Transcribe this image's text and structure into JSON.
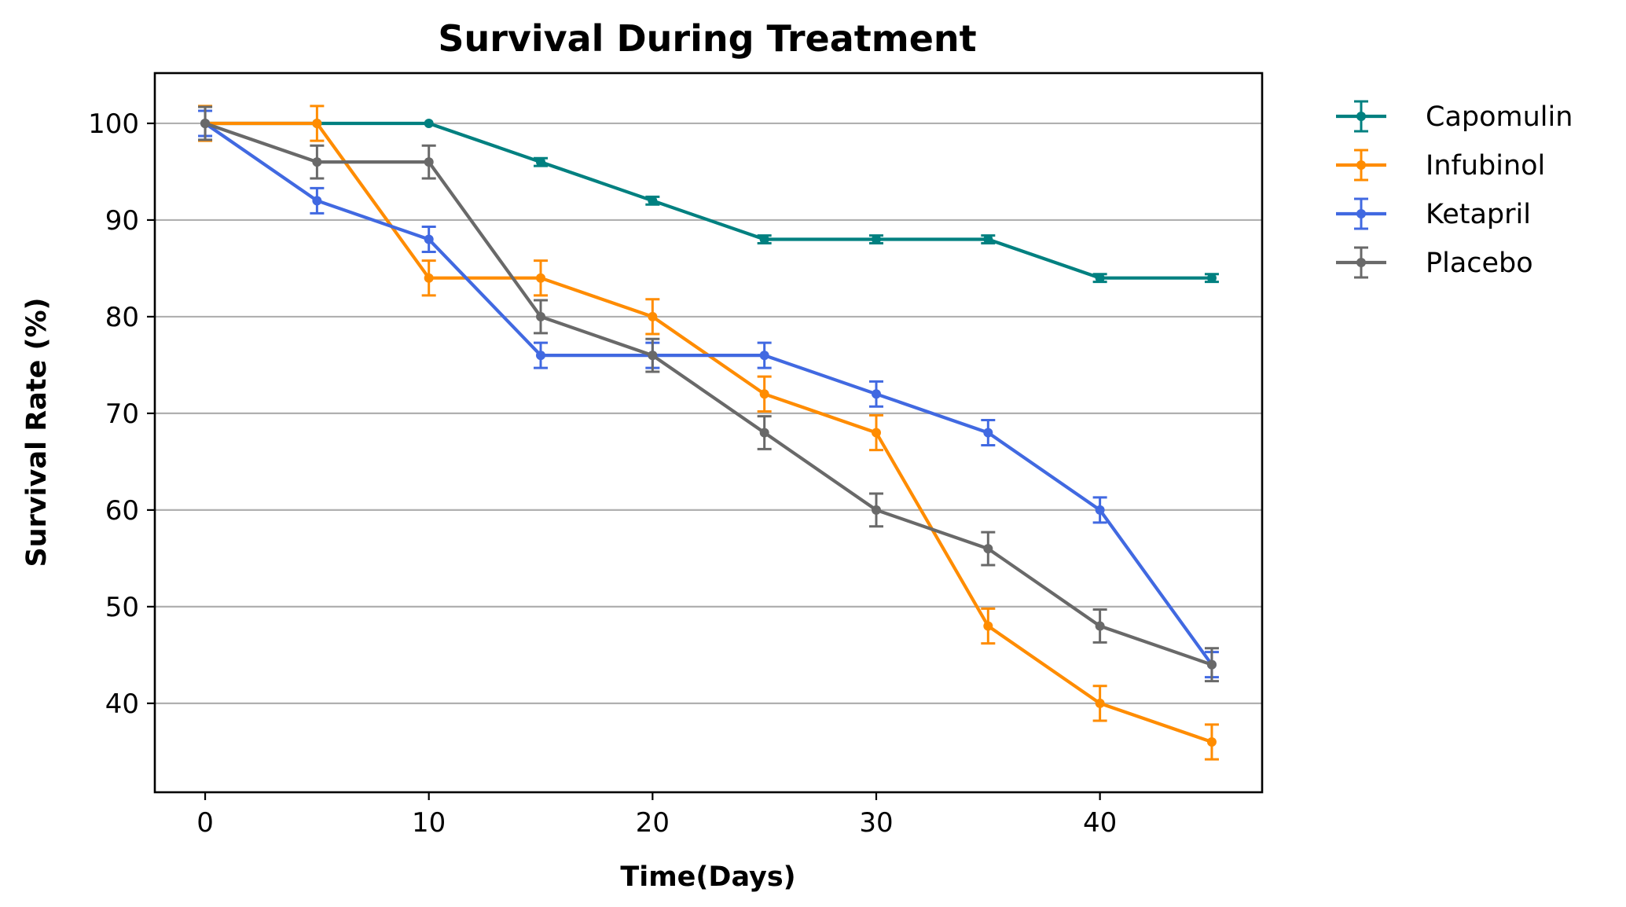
{
  "chart_data": {
    "type": "line",
    "title": "Survival During Treatment",
    "xlabel": "Time(Days)",
    "ylabel": "Survival Rate (%)",
    "x": [
      0,
      5,
      10,
      15,
      20,
      25,
      30,
      35,
      40,
      45
    ],
    "xticks": [
      0,
      10,
      20,
      30,
      40
    ],
    "yticks": [
      40,
      50,
      60,
      70,
      80,
      90,
      100
    ],
    "xlim": [
      -2.25,
      47.25
    ],
    "ylim": [
      30.8,
      105.2
    ],
    "grid": "horizontal",
    "legend_position": "outside-top-right",
    "series": [
      {
        "name": "Capomulin",
        "color": "#008080",
        "values": [
          100,
          100,
          100,
          96,
          92,
          88,
          88,
          88,
          84,
          84
        ],
        "errors": [
          0.0,
          0.0,
          0.0,
          0.4,
          0.4,
          0.4,
          0.4,
          0.4,
          0.4,
          0.4
        ]
      },
      {
        "name": "Infubinol",
        "color": "#ff8c00",
        "values": [
          100,
          100,
          84,
          84,
          80,
          72,
          68,
          48,
          40,
          36
        ],
        "errors": [
          1.8,
          1.8,
          1.8,
          1.8,
          1.8,
          1.8,
          1.8,
          1.8,
          1.8,
          1.8
        ]
      },
      {
        "name": "Ketapril",
        "color": "#4169e1",
        "values": [
          100,
          92,
          88,
          76,
          76,
          76,
          72,
          68,
          60,
          44
        ],
        "errors": [
          1.3,
          1.3,
          1.3,
          1.3,
          1.3,
          1.3,
          1.3,
          1.3,
          1.3,
          1.3
        ]
      },
      {
        "name": "Placebo",
        "color": "#696969",
        "values": [
          100,
          96,
          96,
          80,
          76,
          68,
          60,
          56,
          48,
          44
        ],
        "errors": [
          1.7,
          1.7,
          1.7,
          1.7,
          1.7,
          1.7,
          1.7,
          1.7,
          1.7,
          1.7
        ]
      }
    ]
  }
}
